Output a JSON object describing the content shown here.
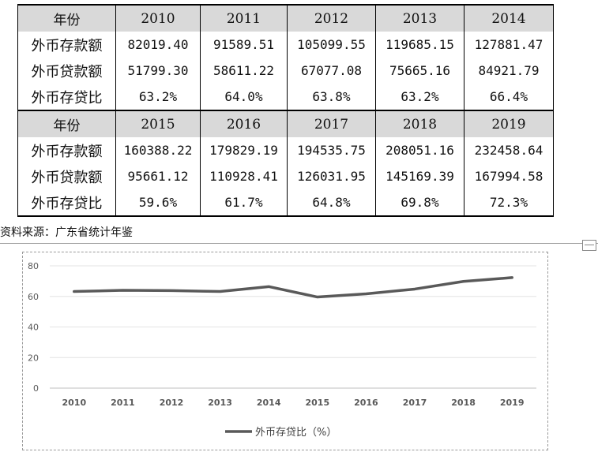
{
  "table": {
    "blocks": [
      {
        "header": [
          "年份",
          "2010",
          "2011",
          "2012",
          "2013",
          "2014"
        ],
        "rows": [
          [
            "外币存款额",
            "82019.40",
            "91589.51",
            "105099.55",
            "119685.15",
            "127881.47"
          ],
          [
            "外币贷款额",
            "51799.30",
            "58611.22",
            "67077.08",
            "75665.16",
            "84921.79"
          ],
          [
            "外币存贷比",
            "63.2%",
            "64.0%",
            "63.8%",
            "63.2%",
            "66.4%"
          ]
        ]
      },
      {
        "header": [
          "年份",
          "2015",
          "2016",
          "2017",
          "2018",
          "2019"
        ],
        "rows": [
          [
            "外币存款额",
            "160388.22",
            "179829.19",
            "194535.75",
            "208051.16",
            "232458.64"
          ],
          [
            "外币贷款额",
            "95661.12",
            "110928.41",
            "126031.95",
            "145169.39",
            "167994.58"
          ],
          [
            "外币存贷比",
            "59.6%",
            "61.7%",
            "64.8%",
            "69.8%",
            "72.3%"
          ]
        ]
      }
    ]
  },
  "source_note": "资料来源：广东省统计年鉴",
  "chart_data": {
    "type": "line",
    "title": "",
    "xlabel": "",
    "ylabel": "",
    "categories": [
      "2010",
      "2011",
      "2012",
      "2013",
      "2014",
      "2015",
      "2016",
      "2017",
      "2018",
      "2019"
    ],
    "series": [
      {
        "name": "外币存贷比（%）",
        "values": [
          63.2,
          64.0,
          63.8,
          63.2,
          66.4,
          59.6,
          61.7,
          64.8,
          69.8,
          72.3
        ]
      }
    ],
    "yticks": [
      "0",
      "20",
      "40",
      "60",
      "80"
    ],
    "ylim": [
      0,
      80
    ],
    "grid": true,
    "legend": "bottom",
    "line_color": "#595959"
  }
}
